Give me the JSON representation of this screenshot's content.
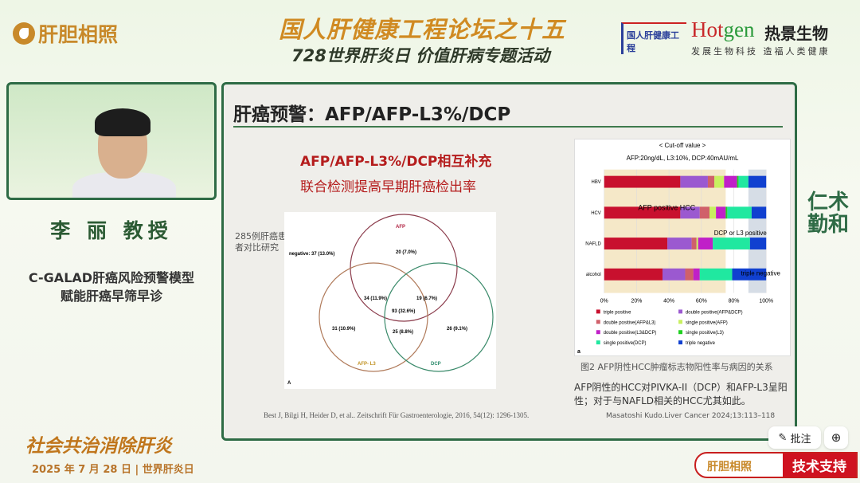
{
  "header": {
    "brand": "肝胆相照",
    "title": "国人肝健康工程论坛之十五",
    "subtitle": "728世界肝炎日 价值肝病专题活动",
    "partner1": "国人肝健康工程",
    "partner2_en_a": "Hot",
    "partner2_en_b": "gen",
    "partner2_cn": "热景生物",
    "partner2_slogan": "发展生物科技 造福人类健康"
  },
  "speaker": {
    "name": "李 丽 教授",
    "topic_line1": "C-GALAD肝癌风险预警模型",
    "topic_line2": "赋能肝癌早筛早诊"
  },
  "footer": {
    "slogan": "社会共治消除肝炎",
    "date": "2025 年 7 月 28 日 | 世界肝炎日",
    "support_brand": "肝胆相照",
    "support_label": "技术支持"
  },
  "side_calligraphy": "仁术勤和",
  "controls": {
    "annotate": "批注",
    "zoom_icon": "zoom-in-icon"
  },
  "slide": {
    "title": "肝癌预警：AFP/AFP-L3%/DCP",
    "venn_heading1": "AFP/AFP-L3%/DCP相互补充",
    "venn_heading2": "联合检测提高早期肝癌检出率",
    "venn_note": "285例肝癌患者对比研究",
    "venn": {
      "negative": "negative: 37 (13.0%)",
      "sets": [
        "AFP",
        "AFP- L3",
        "DCP"
      ],
      "afp_only": "20 (7.0%)",
      "afp_l3": "34 (11.9%)",
      "afp_dcp": "19 (6.7%)",
      "all": "93 (32.6%)",
      "l3_only": "31 (10.9%)",
      "l3_dcp": "25 (8.8%)",
      "dcp_only": "26 (9.1%)",
      "panel": "A"
    },
    "venn_citation": "Best J, Bilgi H, Heider D, et al.. Zeitschrift Für Gastroenterologie, 2016, 54(12): 1296-1305.",
    "chart_caption": "图2 AFP阴性HCC肿瘤标志物阳性率与病因的关系",
    "description": "AFP阴性的HCC对PIVKA-II（DCP）和AFP-L3呈阳性；对于与NAFLD相关的HCC尤其如此。",
    "reference": "Masatoshi Kudo.Liver Cancer 2024;13:113–118"
  },
  "chart_data": {
    "type": "bar",
    "orientation": "horizontal",
    "stacked": true,
    "title": "< Cut-off value >",
    "subtitle": "AFP:20ng/dL, L3:10%, DCP:40mAU/mL",
    "categories": [
      "HBV",
      "HCV",
      "NAFLD",
      "alcohol"
    ],
    "xlim": [
      0,
      100
    ],
    "xticks": [
      "0%",
      "20%",
      "40%",
      "60%",
      "80%",
      "100%"
    ],
    "annotations": [
      "AFP positive HCC",
      "DCP or L3 positive",
      "triple negative"
    ],
    "panel": "a",
    "legend_placement": "bottom",
    "series": [
      {
        "name": "triple positive",
        "color": "#c8102e",
        "values": [
          47,
          47,
          39,
          36
        ]
      },
      {
        "name": "double positive(AFP&DCP)",
        "color": "#9b59d0",
        "values": [
          17,
          12,
          15,
          14
        ]
      },
      {
        "name": "double positive(AFP&L3)",
        "color": "#d0606a",
        "values": [
          4,
          6,
          3,
          5
        ]
      },
      {
        "name": "single positive(AFP)",
        "color": "#c8f060",
        "values": [
          6,
          4,
          1,
          0
        ]
      },
      {
        "name": "double positive(L3&DCP)",
        "color": "#c020c8",
        "values": [
          8,
          6,
          9,
          4
        ]
      },
      {
        "name": "single positive(L3)",
        "color": "#20d020",
        "values": [
          1,
          1,
          0,
          0
        ]
      },
      {
        "name": "single positive(DCP)",
        "color": "#20e8a0",
        "values": [
          6,
          15,
          23,
          20
        ]
      },
      {
        "name": "triple negative",
        "color": "#1040d0",
        "values": [
          11,
          9,
          10,
          21
        ]
      }
    ]
  }
}
